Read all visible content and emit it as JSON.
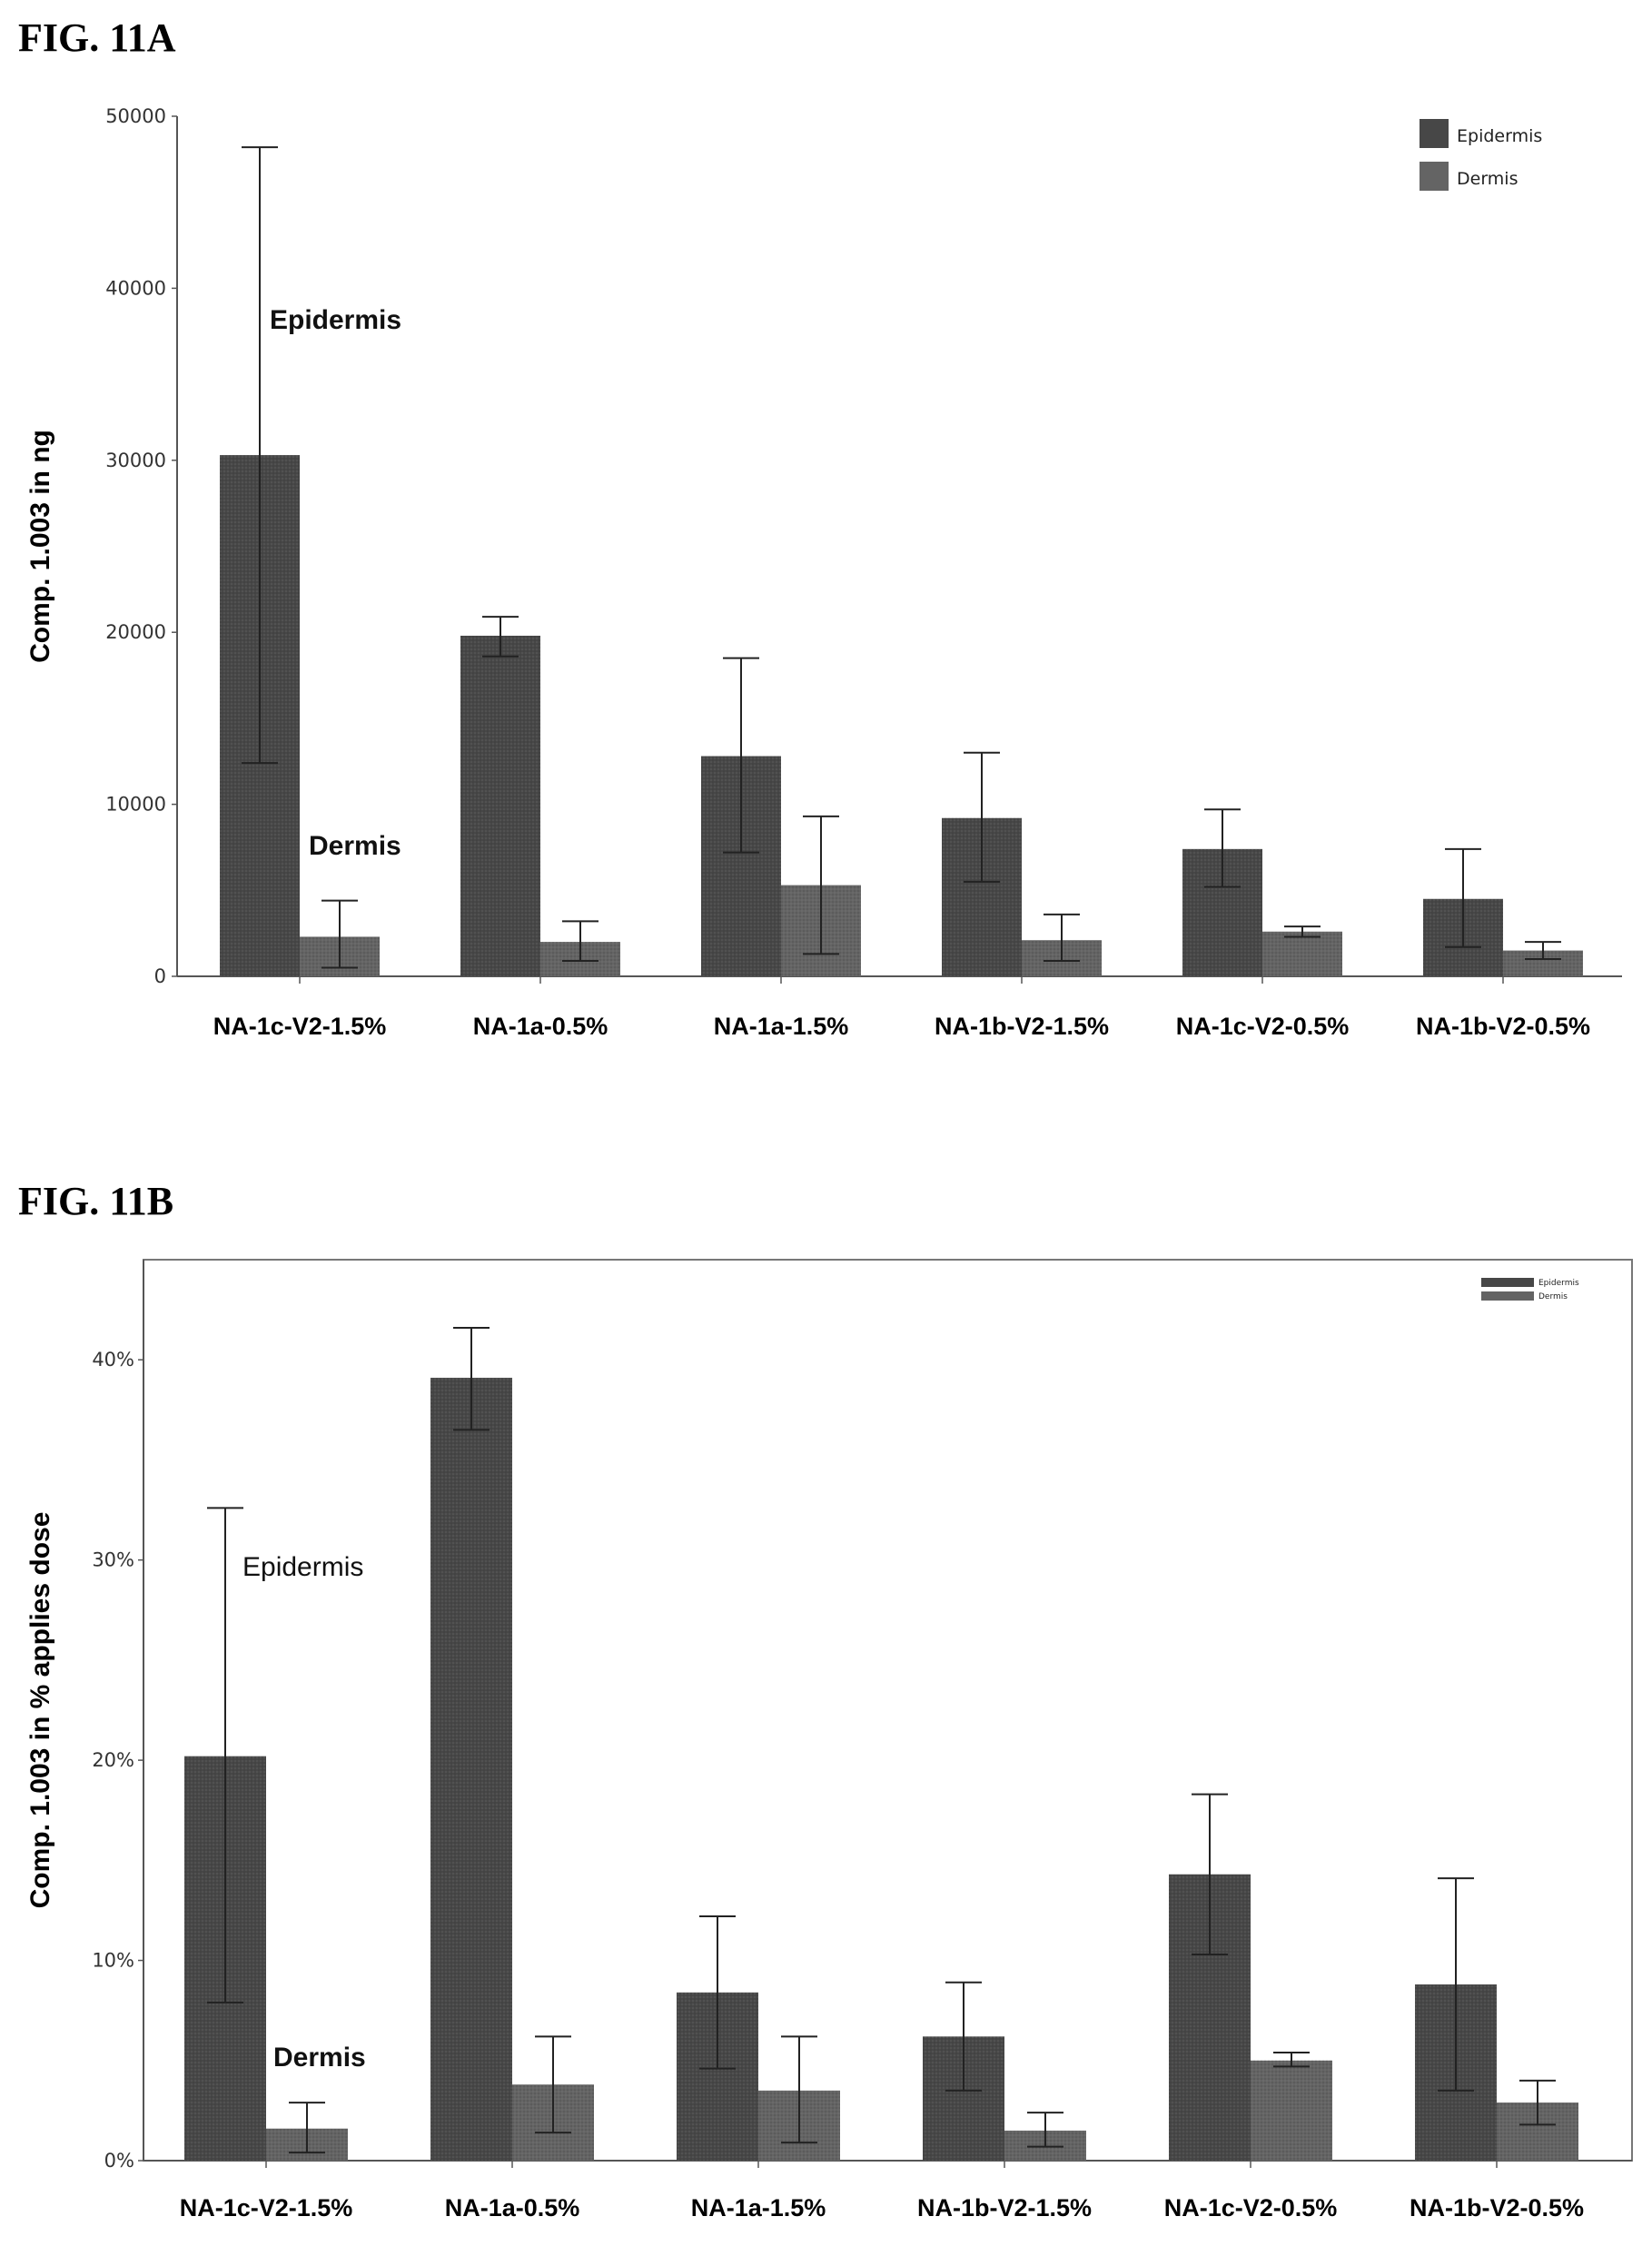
{
  "figures": [
    {
      "title": "FIG. 11A"
    },
    {
      "title": "FIG. 11B"
    }
  ],
  "colors": {
    "epidermis": "#474747",
    "dermis": "#646464",
    "axis": "#555555",
    "error": "#222222"
  },
  "chart_data": [
    {
      "type": "bar",
      "title": "FIG. 11A",
      "xlabel": "",
      "ylabel": "Comp. 1.003 in ng",
      "ylim": [
        0,
        50000
      ],
      "yticks": [
        0,
        10000,
        20000,
        30000,
        40000,
        50000
      ],
      "ytick_labels": [
        "0",
        "10000",
        "20000",
        "30000",
        "40000",
        "50000"
      ],
      "categories": [
        "NA-1c-V2-1.5%",
        "NA-1a-0.5%",
        "NA-1a-1.5%",
        "NA-1b-V2-1.5%",
        "NA-1c-V2-0.5%",
        "NA-1b-V2-0.5%"
      ],
      "series": [
        {
          "name": "Epidermis",
          "values": [
            30300,
            19800,
            12800,
            9200,
            7400,
            4500
          ],
          "error_low": [
            12400,
            18600,
            7200,
            5500,
            5200,
            1700
          ],
          "error_high": [
            48200,
            20900,
            18500,
            13000,
            9700,
            7400
          ]
        },
        {
          "name": "Dermis",
          "values": [
            2300,
            2000,
            5300,
            2100,
            2600,
            1500
          ],
          "error_low": [
            500,
            900,
            1300,
            900,
            2300,
            1000
          ],
          "error_high": [
            4400,
            3200,
            9300,
            3600,
            2900,
            2000
          ]
        }
      ],
      "legend": {
        "position": "top-right",
        "entries": [
          "Epidermis",
          "Dermis"
        ]
      },
      "annotations": [
        "Epidermis",
        "Dermis"
      ],
      "grid": false
    },
    {
      "type": "bar",
      "title": "FIG. 11B",
      "xlabel": "",
      "ylabel": "Comp. 1.003 in % applies dose",
      "ylim": [
        0,
        45
      ],
      "yticks": [
        0,
        10,
        20,
        30,
        40
      ],
      "ytick_labels": [
        "0%",
        "10%",
        "20%",
        "30%",
        "40%"
      ],
      "categories": [
        "NA-1c-V2-1.5%",
        "NA-1a-0.5%",
        "NA-1a-1.5%",
        "NA-1b-V2-1.5%",
        "NA-1c-V2-0.5%",
        "NA-1b-V2-0.5%"
      ],
      "series": [
        {
          "name": "Epidermis",
          "values": [
            20.2,
            39.1,
            8.4,
            6.2,
            14.3,
            8.8
          ],
          "error_low": [
            7.9,
            36.5,
            4.6,
            3.5,
            10.3,
            3.5
          ],
          "error_high": [
            32.6,
            41.6,
            12.2,
            8.9,
            18.3,
            14.1
          ]
        },
        {
          "name": "Dermis",
          "values": [
            1.6,
            3.8,
            3.5,
            1.5,
            5.0,
            2.9
          ],
          "error_low": [
            0.4,
            1.4,
            0.9,
            0.7,
            4.7,
            1.8
          ],
          "error_high": [
            2.9,
            6.2,
            6.2,
            2.4,
            5.4,
            4.0
          ]
        }
      ],
      "legend": {
        "position": "top-right",
        "entries": [
          "Epidermis",
          "Dermis"
        ]
      },
      "annotations": [
        "Epidermis",
        "Dermis"
      ],
      "grid": false
    }
  ]
}
